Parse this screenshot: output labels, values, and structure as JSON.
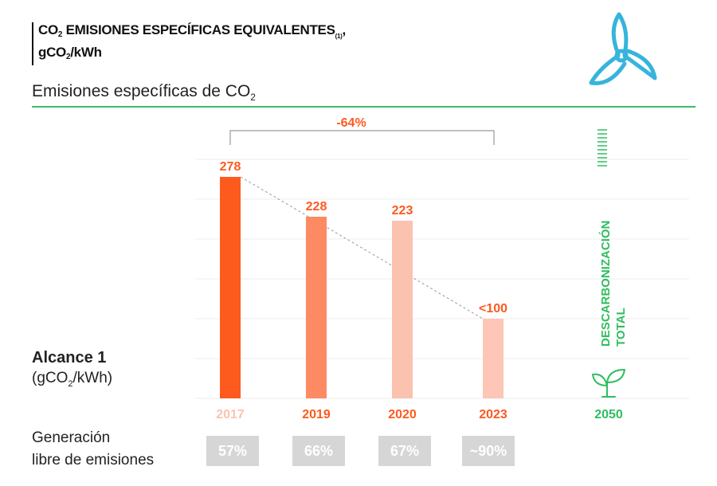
{
  "title": {
    "line1_pre": "CO",
    "line1_sub": "2",
    "line1_post": " EMISIONES ESPECÍFICAS EQUIVALENTES",
    "line1_ref": "(1)",
    "line1_end": ",",
    "line2_pre": "gCO",
    "line2_sub": "2",
    "line2_post": "/kWh"
  },
  "subtitle": {
    "pre": "Emisiones específicas de CO",
    "sub": "2"
  },
  "ylabel": {
    "strong": "Alcance 1",
    "pre": "(gCO",
    "sub": "2",
    "post": "/kWh)"
  },
  "generation_label": {
    "line1": "Generación",
    "line2": "libre de emisiones"
  },
  "generation_values": [
    "57%",
    "66%",
    "67%",
    "~90%"
  ],
  "colors": {
    "accent_dark": "#fd5a1e",
    "accent_mid": "#fc8a62",
    "accent_light": "#fcc2b0",
    "accent_lighter": "#fdc6b6",
    "green": "#2fbd5e",
    "teal": "#36b4dc"
  },
  "chart_data": {
    "type": "bar",
    "title": "Emisiones específicas de CO2",
    "ylabel": "Alcance 1 (gCO2/kWh)",
    "categories": [
      "2017",
      "2019",
      "2020",
      "2023"
    ],
    "values": [
      278,
      228,
      223,
      100
    ],
    "value_labels": [
      "278",
      "228",
      "223",
      "<100"
    ],
    "bar_colors": [
      "#fd5a1e",
      "#fc8a62",
      "#fcc2b0",
      "#fdc6b6"
    ],
    "ylim": [
      0,
      300
    ],
    "grid": true,
    "bracket_label": "-64%",
    "target_year": "2050",
    "target_label_line1": "DESCARBONIZACIÓN",
    "target_label_line2": "TOTAL"
  }
}
